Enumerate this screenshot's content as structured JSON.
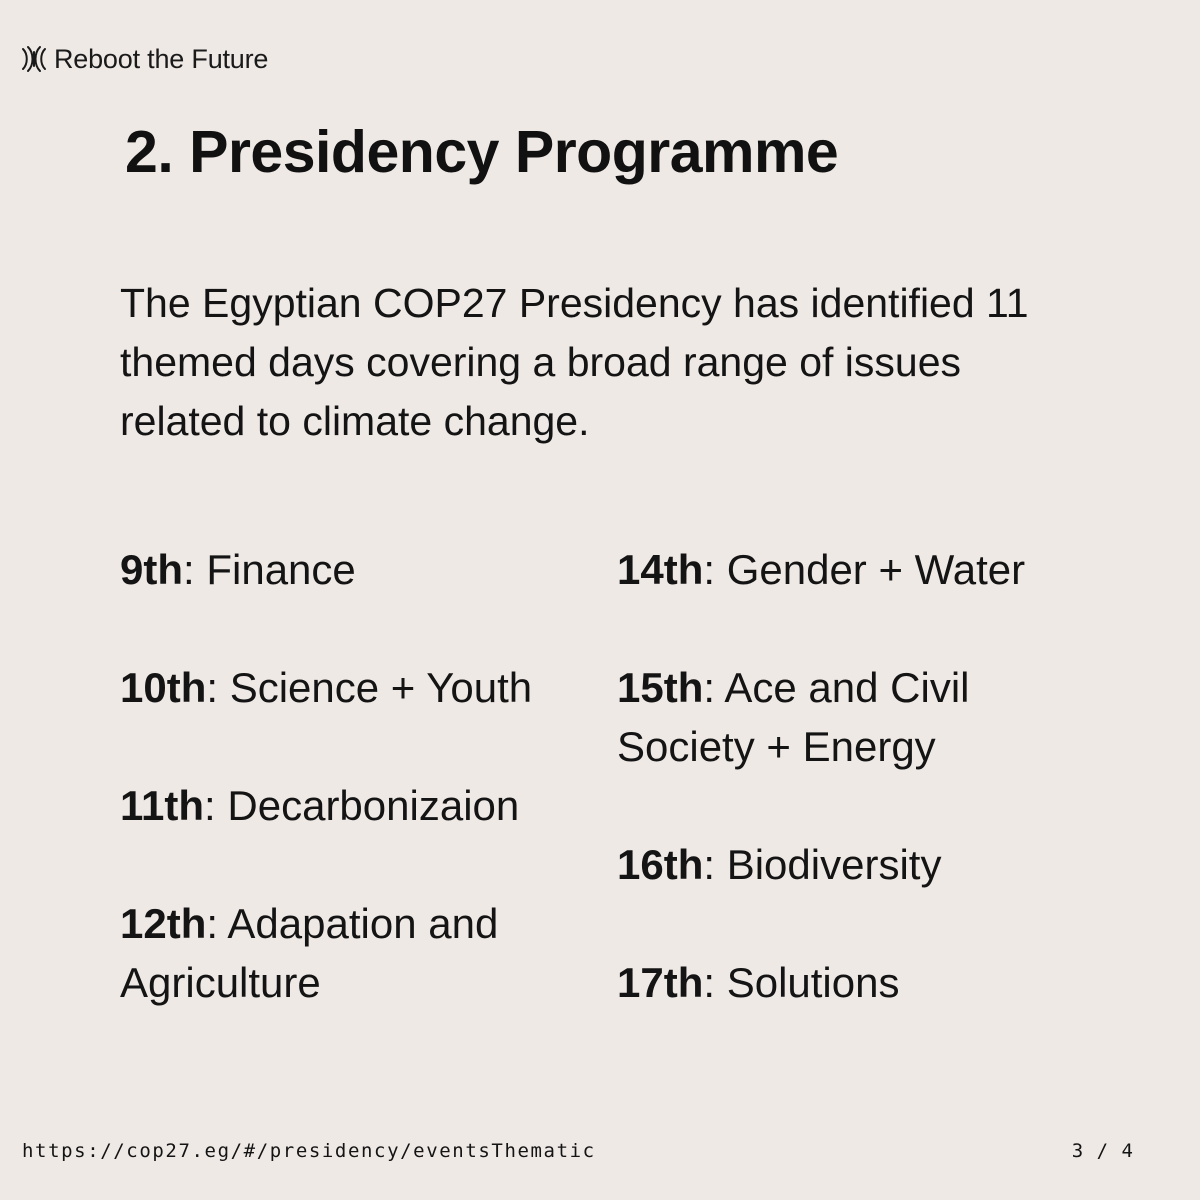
{
  "brand": {
    "name": "Reboot the Future",
    "icon": "reboot-logo-icon"
  },
  "title": "2. Presidency Programme",
  "intro": "The Egyptian COP27 Presidency has identified 11 themed days covering a broad range of issues related to climate change.",
  "themed_days": {
    "left": [
      {
        "date": "9th",
        "theme": "Finance"
      },
      {
        "date": "10th",
        "theme": "Science + Youth"
      },
      {
        "date": "11th",
        "theme": "Decarbonizaion"
      },
      {
        "date": "12th",
        "theme": "Adapation and Agriculture"
      }
    ],
    "right": [
      {
        "date": "14th",
        "theme": "Gender + Water"
      },
      {
        "date": "15th",
        "theme": "Ace and Civil Society + Energy"
      },
      {
        "date": "16th",
        "theme": "Biodiversity"
      },
      {
        "date": "17th",
        "theme": "Solutions"
      }
    ]
  },
  "footer": {
    "url": "https://cop27.eg/#/presidency/eventsThematic",
    "page": "3 / 4"
  }
}
